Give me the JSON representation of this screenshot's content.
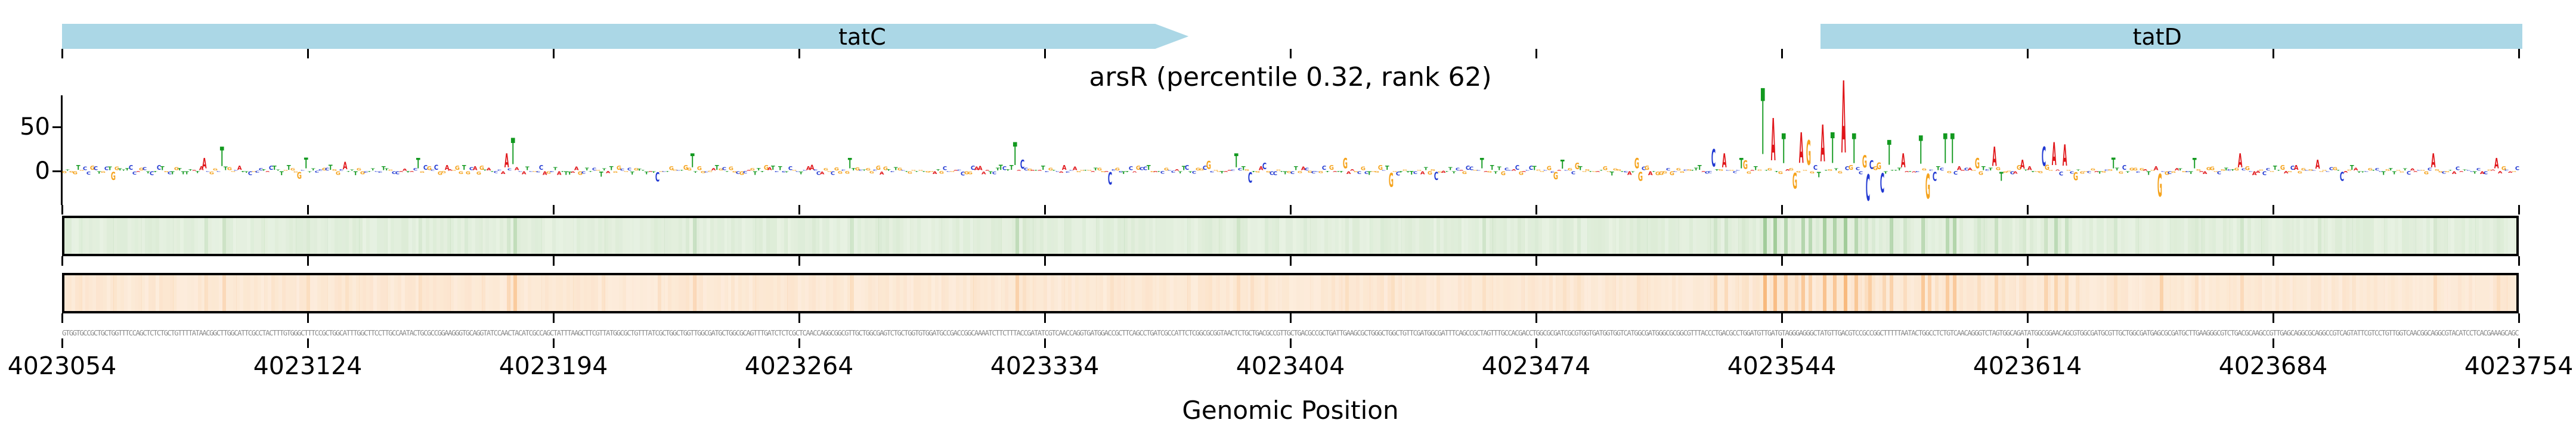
{
  "figure": {
    "title": "arsR (percentile 0.32, rank 62)",
    "xlabel": "Genomic Position"
  },
  "chart_data": {
    "type": "bar",
    "subtype": "genomic-attribution-sequence-logo",
    "title": "arsR (percentile 0.32, rank 62)",
    "xlabel": "Genomic Position",
    "x_axis": {
      "start": 4023054,
      "end": 4023754,
      "tick_interval": 70,
      "tick_labels": [
        "4023054",
        "4023124",
        "4023194",
        "4023264",
        "4023334",
        "4023404",
        "4023474",
        "4023544",
        "4023614",
        "4023684",
        "4023754"
      ]
    },
    "y_axis": {
      "tick_labels": [
        "50",
        "0"
      ],
      "ticks": [
        50,
        0
      ],
      "range": [
        -35,
        90
      ]
    },
    "genes": [
      {
        "label": "tatC",
        "start": 4023054,
        "end": 4023374,
        "arrow_right": true,
        "label_pos": 4023282,
        "clipped_left": true,
        "clipped_right": false
      },
      {
        "label": "tatD",
        "start": 4023555,
        "end": 4023754,
        "arrow_right": false,
        "label_pos": 4023651,
        "clipped_left": false,
        "clipped_right": true
      }
    ],
    "peaks_pos_base_value": [
      [
        4023094,
        "A",
        12
      ],
      [
        4023099,
        "T",
        22
      ],
      [
        4023121,
        "G",
        -8
      ],
      [
        4023155,
        "T",
        12
      ],
      [
        4023180,
        "A",
        16
      ],
      [
        4023182,
        "T",
        30
      ],
      [
        4023233,
        "T",
        16
      ],
      [
        4023278,
        "T",
        12
      ],
      [
        4023325,
        "T",
        26
      ],
      [
        4023352,
        "C",
        -14
      ],
      [
        4023388,
        "T",
        16
      ],
      [
        4023392,
        "C",
        -12
      ],
      [
        4023419,
        "G",
        12
      ],
      [
        4023432,
        "G",
        -16
      ],
      [
        4023458,
        "T",
        12
      ],
      [
        4023481,
        "T",
        10
      ],
      [
        4023503,
        "G",
        -10
      ],
      [
        4023524,
        "C",
        20
      ],
      [
        4023527,
        "A",
        16
      ],
      [
        4023532,
        "T",
        12
      ],
      [
        4023538,
        "T",
        75
      ],
      [
        4023541,
        "A",
        48
      ],
      [
        4023544,
        "T",
        34
      ],
      [
        4023547,
        "G",
        -18
      ],
      [
        4023549,
        "A",
        35
      ],
      [
        4023551,
        "G",
        28
      ],
      [
        4023555,
        "A",
        42
      ],
      [
        4023558,
        "T",
        35
      ],
      [
        4023561,
        "A",
        82
      ],
      [
        4023564,
        "T",
        34
      ],
      [
        4023567,
        "G",
        14
      ],
      [
        4023568,
        "C",
        -30
      ],
      [
        4023572,
        "C",
        -22
      ],
      [
        4023574,
        "T",
        28
      ],
      [
        4023578,
        "A",
        16
      ],
      [
        4023583,
        "T",
        32
      ],
      [
        4023585,
        "G",
        -28
      ],
      [
        4023587,
        "C",
        -10
      ],
      [
        4023590,
        "T",
        34
      ],
      [
        4023592,
        "T",
        34
      ],
      [
        4023599,
        "G",
        12
      ],
      [
        4023604,
        "A",
        22
      ],
      [
        4023606,
        "T",
        -10
      ],
      [
        4023612,
        "A",
        10
      ],
      [
        4023618,
        "C",
        22
      ],
      [
        4023621,
        "A",
        26
      ],
      [
        4023624,
        "A",
        24
      ],
      [
        4023651,
        "G",
        -26
      ],
      [
        4023661,
        "T",
        12
      ],
      [
        4023674,
        "A",
        16
      ],
      [
        4023703,
        "C",
        -10
      ],
      [
        4023729,
        "A",
        16
      ],
      [
        4023747,
        "A",
        12
      ]
    ],
    "sequence": "GTGGTGCCGCTGCTGGTTTCCAGCTCTCTGCTGTTTTATATCGGCATGGCATTCGCCTACTTTGTGGTCTTTCCGCTGGCATTTGGCTTCCTTGCCAATACCGCGCCGGAAGGGTGCAGGTATCCACCGACATCGCCAGCTATTTAAGCTTCGTTATGGCGCTGTTTATCGCTGGCTGGCTGGCGATGCTGGCGCAGTTTGATCTCTCGCTCAACCAGGCGGCGGTGCTGGCGAGTCTGCTGGTGTGGATGCCGACCGGCAAAATCTTCTTCACCGATATCGTCAACCAGGTGATGGAACGCTTCAGCCTGATCGCCATTCTCGGCGCGGTAACGCTGGTGACGCCGTTGCTGACGCCGCTGATTAAAGCGCTGGGCTTGCTGTTCGATGGCGATTTCAGCCGCCAGTTTGCCACGACCTGGCGCGATCGCGTGGTGATGGTGGTCATGGCGATGGGCGCGGCGTTTACCCTGCCGCCAGGATGATGTTGTAGCGTGCGCTTTGTTGCCGACCAGCGGCTGTTTGATACCGCCATCTGGCAACAGCGTCTGGCGGCAGATATGGCGGAACTGCGTGGCGATGCGTTGCTGGCGATGACCGCGATGCTGGAAGGGCGTCTGGCGCAAGCCGTTGAGCAGGCGCAGGCCGTCAGTATTCGTCCTGTTGGTCAACGGCGGGCGTACATCCTCACGACAGCAGC",
    "colors": {
      "gene_fill": "#abd7e6",
      "base_A": "#e01519",
      "base_C": "#2038d2",
      "base_G": "#f5a31c",
      "base_T": "#12991f",
      "green_track_bg": "#edf5e8",
      "green_track_stripe_rgb": "100,170,90",
      "orange_track_bg": "#fdf0e2",
      "orange_track_stripe_rgb": "245,150,60",
      "sequence_text": "#8a8a8a",
      "axis": "#000000"
    },
    "layout_note_tracks": [
      "gene-annotation",
      "attribution-logo",
      "green-heatmap-strip",
      "orange-heatmap-strip",
      "dna-sequence",
      "genomic-axis"
    ]
  }
}
